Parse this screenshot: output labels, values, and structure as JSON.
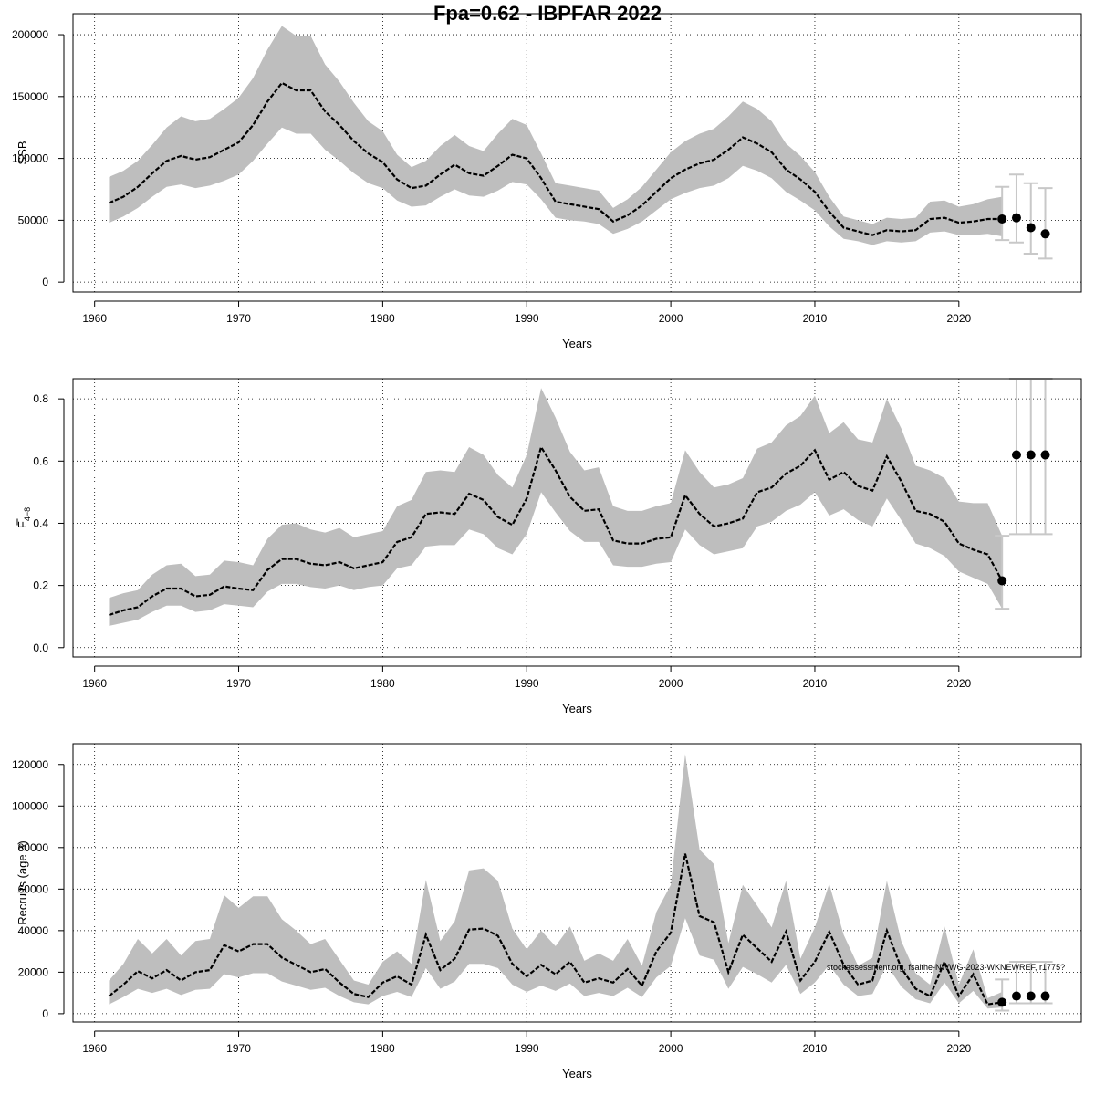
{
  "title": "Fpa=0.62 - IBPFAR 2022",
  "watermark": "stockassessment.org, fsaithe-NWWG-2023-WKNEWREF, r1775?",
  "colors": {
    "band": "#bebebe",
    "line": "#000000",
    "grid": "#000000",
    "errorbar": "#c8c8c8",
    "point": "#000000"
  },
  "chart_data": [
    {
      "type": "line",
      "ylabel": "SSB",
      "xlabel": "Years",
      "xlim": [
        1958.5,
        2028.5
      ],
      "ylim": [
        -8000,
        217000
      ],
      "xticks": [
        1960,
        1970,
        1980,
        1990,
        2000,
        2010,
        2020
      ],
      "yticks": [
        0,
        50000,
        100000,
        150000,
        200000
      ],
      "grid": true,
      "x": [
        1961,
        1962,
        1963,
        1964,
        1965,
        1966,
        1967,
        1968,
        1969,
        1970,
        1971,
        1972,
        1973,
        1974,
        1975,
        1976,
        1977,
        1978,
        1979,
        1980,
        1981,
        1982,
        1983,
        1984,
        1985,
        1986,
        1987,
        1988,
        1989,
        1990,
        1991,
        1992,
        1993,
        1994,
        1995,
        1996,
        1997,
        1998,
        1999,
        2000,
        2001,
        2002,
        2003,
        2004,
        2005,
        2006,
        2007,
        2008,
        2009,
        2010,
        2011,
        2012,
        2013,
        2014,
        2015,
        2016,
        2017,
        2018,
        2019,
        2020,
        2021,
        2022,
        2023
      ],
      "estimate": [
        64000,
        69000,
        77000,
        88000,
        98000,
        102000,
        99000,
        101000,
        107000,
        113000,
        127000,
        146000,
        161000,
        155000,
        155000,
        138000,
        127000,
        114000,
        104000,
        97000,
        83000,
        76000,
        78000,
        87000,
        95000,
        88000,
        86000,
        94000,
        103000,
        100000,
        84000,
        65000,
        63000,
        61000,
        59000,
        49000,
        54000,
        62000,
        73000,
        84000,
        91000,
        96000,
        99000,
        107000,
        117000,
        112000,
        105000,
        91000,
        83000,
        73000,
        57000,
        44000,
        41000,
        38000,
        42000,
        41000,
        42000,
        51000,
        52000,
        48000,
        49000,
        51000,
        51000
      ],
      "upper": [
        85000,
        90000,
        98000,
        111000,
        125000,
        134000,
        130000,
        132000,
        140000,
        149000,
        165000,
        188000,
        207000,
        199000,
        199000,
        176000,
        162000,
        145000,
        130000,
        122000,
        103000,
        93000,
        98000,
        110000,
        119000,
        110000,
        106000,
        120000,
        132000,
        127000,
        104000,
        80000,
        78000,
        76000,
        74000,
        60000,
        67000,
        77000,
        91000,
        105000,
        114000,
        120000,
        124000,
        134000,
        146000,
        140000,
        130000,
        112000,
        102000,
        89000,
        69000,
        53000,
        50000,
        47000,
        52000,
        51000,
        52000,
        65000,
        66000,
        61000,
        63000,
        67000,
        69000
      ],
      "lower": [
        48000,
        53000,
        60000,
        69000,
        77000,
        79000,
        76000,
        78000,
        82000,
        87000,
        98000,
        112000,
        125000,
        120000,
        120000,
        107000,
        98000,
        88000,
        80000,
        76000,
        66000,
        61000,
        62000,
        69000,
        75000,
        70000,
        69000,
        74000,
        81000,
        79000,
        67000,
        52000,
        50000,
        49000,
        47000,
        39000,
        43000,
        49000,
        58000,
        67000,
        72000,
        76000,
        78000,
        84000,
        94000,
        90000,
        84000,
        73000,
        66000,
        58000,
        45000,
        35000,
        33000,
        30000,
        33000,
        32000,
        33000,
        40000,
        41000,
        38000,
        38000,
        39000,
        37000
      ],
      "forecast": {
        "x": [
          2023,
          2024,
          2025,
          2026
        ],
        "value": [
          51000,
          52000,
          44000,
          39000
        ],
        "upper": [
          77000,
          87000,
          80000,
          76000
        ],
        "lower": [
          34000,
          32000,
          23000,
          19000
        ]
      }
    },
    {
      "type": "line",
      "ylabel": "F",
      "ylabel_sub": "4−8",
      "xlabel": "Years",
      "xlim": [
        1958.5,
        2028.5
      ],
      "ylim": [
        -0.03,
        0.865
      ],
      "xticks": [
        1960,
        1970,
        1980,
        1990,
        2000,
        2010,
        2020
      ],
      "yticks": [
        0.0,
        0.2,
        0.4,
        0.6,
        0.8
      ],
      "ytick_labels": [
        "0.0",
        "0.2",
        "0.4",
        "0.6",
        "0.8"
      ],
      "grid": true,
      "x": [
        1961,
        1962,
        1963,
        1964,
        1965,
        1966,
        1967,
        1968,
        1969,
        1970,
        1971,
        1972,
        1973,
        1974,
        1975,
        1976,
        1977,
        1978,
        1979,
        1980,
        1981,
        1982,
        1983,
        1984,
        1985,
        1986,
        1987,
        1988,
        1989,
        1990,
        1991,
        1992,
        1993,
        1994,
        1995,
        1996,
        1997,
        1998,
        1999,
        2000,
        2001,
        2002,
        2003,
        2004,
        2005,
        2006,
        2007,
        2008,
        2009,
        2010,
        2011,
        2012,
        2013,
        2014,
        2015,
        2016,
        2017,
        2018,
        2019,
        2020,
        2021,
        2022,
        2023
      ],
      "estimate": [
        0.105,
        0.12,
        0.13,
        0.165,
        0.19,
        0.19,
        0.165,
        0.17,
        0.197,
        0.19,
        0.185,
        0.25,
        0.285,
        0.285,
        0.27,
        0.265,
        0.275,
        0.255,
        0.265,
        0.275,
        0.34,
        0.355,
        0.43,
        0.435,
        0.43,
        0.495,
        0.475,
        0.42,
        0.395,
        0.48,
        0.645,
        0.57,
        0.485,
        0.44,
        0.445,
        0.345,
        0.335,
        0.335,
        0.35,
        0.355,
        0.49,
        0.43,
        0.39,
        0.4,
        0.415,
        0.5,
        0.515,
        0.56,
        0.585,
        0.635,
        0.54,
        0.565,
        0.52,
        0.505,
        0.615,
        0.535,
        0.44,
        0.43,
        0.405,
        0.335,
        0.315,
        0.3,
        0.215
      ],
      "upper": [
        0.16,
        0.175,
        0.185,
        0.235,
        0.265,
        0.27,
        0.23,
        0.235,
        0.28,
        0.275,
        0.265,
        0.35,
        0.395,
        0.4,
        0.38,
        0.37,
        0.385,
        0.355,
        0.365,
        0.375,
        0.455,
        0.475,
        0.565,
        0.57,
        0.565,
        0.645,
        0.62,
        0.555,
        0.515,
        0.62,
        0.835,
        0.74,
        0.63,
        0.57,
        0.58,
        0.455,
        0.44,
        0.44,
        0.455,
        0.465,
        0.635,
        0.565,
        0.515,
        0.525,
        0.545,
        0.64,
        0.66,
        0.715,
        0.745,
        0.81,
        0.69,
        0.725,
        0.67,
        0.66,
        0.8,
        0.705,
        0.585,
        0.57,
        0.545,
        0.47,
        0.465,
        0.465,
        0.36
      ],
      "lower": [
        0.07,
        0.08,
        0.09,
        0.115,
        0.135,
        0.135,
        0.115,
        0.12,
        0.14,
        0.135,
        0.13,
        0.18,
        0.205,
        0.205,
        0.195,
        0.19,
        0.2,
        0.185,
        0.195,
        0.2,
        0.255,
        0.265,
        0.325,
        0.33,
        0.33,
        0.38,
        0.365,
        0.32,
        0.3,
        0.365,
        0.5,
        0.435,
        0.375,
        0.34,
        0.34,
        0.265,
        0.26,
        0.26,
        0.27,
        0.275,
        0.38,
        0.33,
        0.3,
        0.31,
        0.32,
        0.39,
        0.405,
        0.44,
        0.46,
        0.5,
        0.425,
        0.445,
        0.41,
        0.39,
        0.48,
        0.41,
        0.335,
        0.32,
        0.295,
        0.245,
        0.225,
        0.205,
        0.125
      ],
      "forecast": {
        "x": [
          2023,
          2024,
          2025,
          2026
        ],
        "value": [
          0.215,
          0.62,
          0.62,
          0.62
        ],
        "upper": [
          0.36,
          0.865,
          0.865,
          0.865
        ],
        "lower": [
          0.125,
          0.365,
          0.365,
          0.365
        ]
      }
    },
    {
      "type": "line",
      "ylabel": "Recruits (age 3)",
      "xlabel": "Years",
      "xlim": [
        1958.5,
        2028.5
      ],
      "ylim": [
        -4000,
        130000
      ],
      "xticks": [
        1960,
        1970,
        1980,
        1990,
        2000,
        2010,
        2020
      ],
      "yticks": [
        0,
        20000,
        40000,
        60000,
        80000,
        100000,
        120000
      ],
      "grid": true,
      "x": [
        1961,
        1962,
        1963,
        1964,
        1965,
        1966,
        1967,
        1968,
        1969,
        1970,
        1971,
        1972,
        1973,
        1974,
        1975,
        1976,
        1977,
        1978,
        1979,
        1980,
        1981,
        1982,
        1983,
        1984,
        1985,
        1986,
        1987,
        1988,
        1989,
        1990,
        1991,
        1992,
        1993,
        1994,
        1995,
        1996,
        1997,
        1998,
        1999,
        2000,
        2001,
        2002,
        2003,
        2004,
        2005,
        2006,
        2007,
        2008,
        2009,
        2010,
        2011,
        2012,
        2013,
        2014,
        2015,
        2016,
        2017,
        2018,
        2019,
        2020,
        2021,
        2022,
        2023
      ],
      "estimate": [
        8500,
        14000,
        20500,
        17000,
        21000,
        16000,
        20000,
        21000,
        33000,
        30000,
        33500,
        33500,
        27000,
        23500,
        20000,
        21500,
        15000,
        9500,
        8000,
        15000,
        18000,
        14000,
        38000,
        21000,
        26500,
        40500,
        41000,
        37500,
        24000,
        18000,
        23500,
        19000,
        25000,
        15000,
        17000,
        15000,
        21500,
        13500,
        30000,
        39000,
        77000,
        47000,
        44000,
        20000,
        38000,
        31500,
        25000,
        39500,
        16000,
        25000,
        39500,
        23500,
        14000,
        16000,
        40000,
        22000,
        12000,
        8500,
        25000,
        8500,
        19000,
        4500,
        5500
      ],
      "upper": [
        16000,
        24000,
        36000,
        29000,
        36000,
        28000,
        35000,
        36000,
        57000,
        51000,
        56500,
        56500,
        45500,
        40000,
        33500,
        36000,
        26000,
        16000,
        14000,
        25000,
        30000,
        24000,
        64500,
        35000,
        44500,
        69000,
        70000,
        64000,
        41000,
        31000,
        40000,
        32500,
        42000,
        25500,
        29000,
        25500,
        36000,
        23000,
        49000,
        62000,
        125000,
        79000,
        72000,
        34000,
        62000,
        52000,
        41500,
        64000,
        26500,
        41500,
        62500,
        38000,
        23000,
        27000,
        64000,
        35000,
        19500,
        14000,
        42000,
        14000,
        31000,
        7500,
        10500
      ],
      "lower": [
        4500,
        8000,
        12000,
        10000,
        12000,
        9000,
        11500,
        12000,
        19000,
        17500,
        19500,
        19500,
        15500,
        13500,
        11500,
        12500,
        8500,
        5500,
        4500,
        8500,
        10500,
        8000,
        22000,
        12000,
        15500,
        24000,
        24000,
        22000,
        14000,
        10500,
        13500,
        11000,
        14500,
        8500,
        10000,
        8500,
        12500,
        8000,
        17500,
        23000,
        46000,
        28000,
        26000,
        12000,
        22500,
        19000,
        15000,
        23500,
        9500,
        15000,
        23500,
        14000,
        8500,
        9500,
        23500,
        13000,
        7000,
        5000,
        15000,
        5000,
        11000,
        2500,
        3000
      ],
      "forecast": {
        "x": [
          2023,
          2024,
          2025,
          2026
        ],
        "value": [
          5500,
          8500,
          8500,
          8500
        ],
        "upper": [
          16500,
          25000,
          25000,
          25000
        ],
        "lower": [
          1500,
          5000,
          5000,
          5000
        ]
      }
    }
  ]
}
